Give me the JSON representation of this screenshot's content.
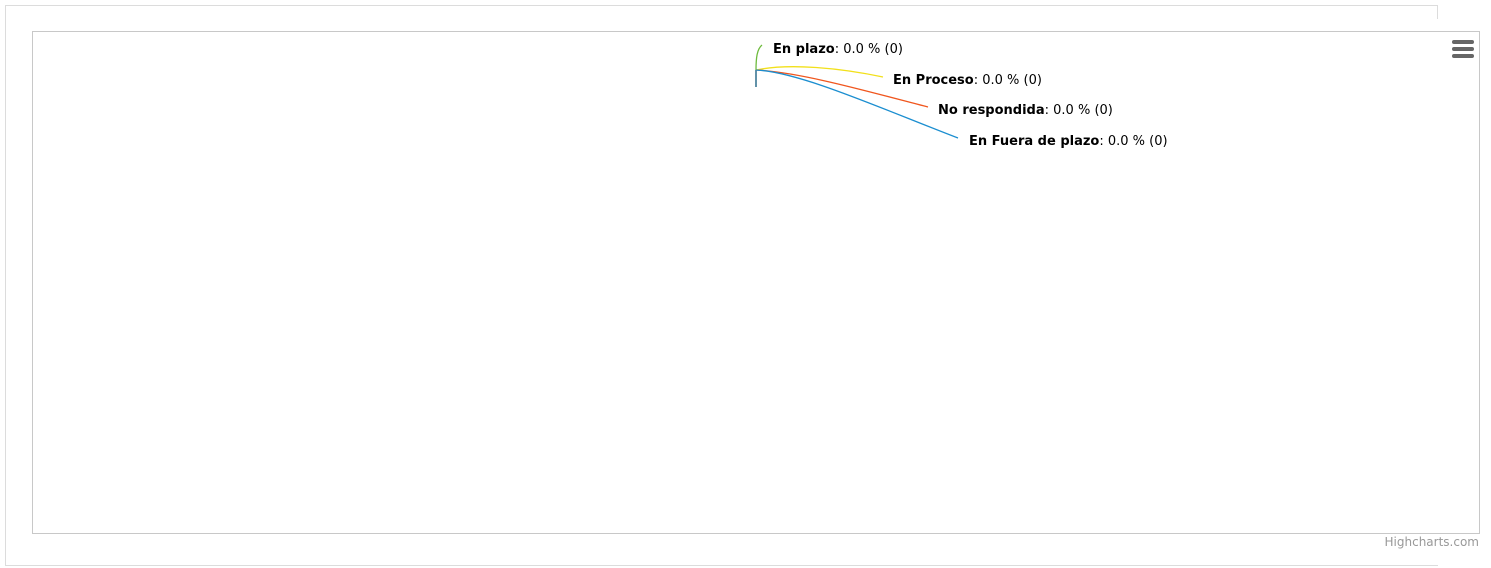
{
  "chart_data": {
    "type": "pie",
    "title": "",
    "series": [
      {
        "data": [
          {
            "name": "En plazo",
            "percent_text": "0.0 %",
            "count": 0,
            "value": 0,
            "color": "#6dbb3c"
          },
          {
            "name": "En Proceso",
            "percent_text": "0.0 %",
            "count": 0,
            "value": 0,
            "color": "#f2e01b"
          },
          {
            "name": "No respondida",
            "percent_text": "0.0 %",
            "count": 0,
            "value": 0,
            "color": "#f0561e"
          },
          {
            "name": "En Fuera de plazo",
            "percent_text": "0.0 %",
            "count": 0,
            "value": 0,
            "color": "#1b8ed0"
          }
        ]
      }
    ]
  },
  "credits": "Highcharts.com",
  "menu_icon": "hamburger-menu-icon"
}
